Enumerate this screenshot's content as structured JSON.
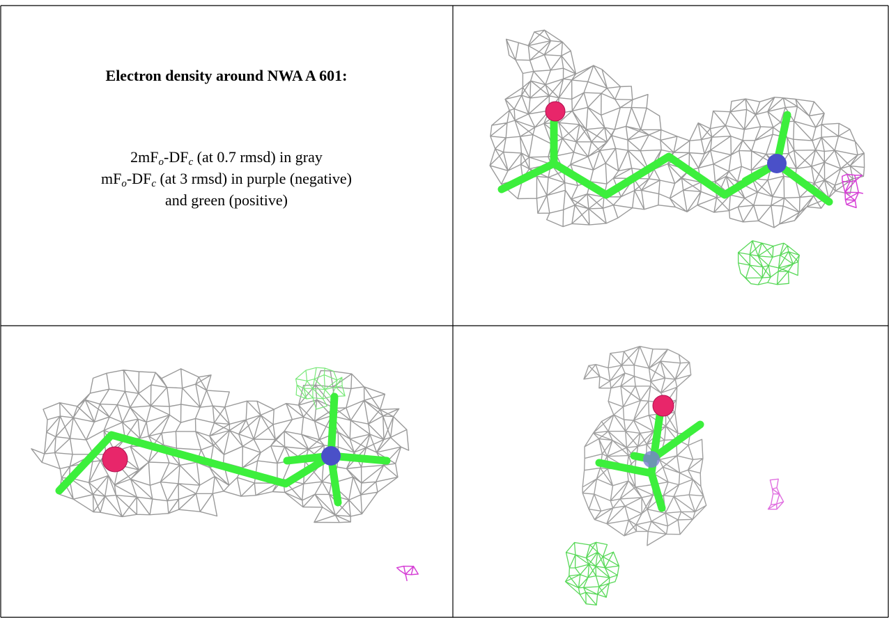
{
  "caption": {
    "title": "Electron density around NWA A 601:",
    "line1": [
      "2mF",
      "o",
      "-DF",
      "c",
      " (at 0.7 rmsd) in gray"
    ],
    "line2": [
      "mF",
      "o",
      "-DF",
      "c",
      " (at 3 rmsd) in purple (negative)"
    ],
    "line3": "and green (positive)"
  }
}
